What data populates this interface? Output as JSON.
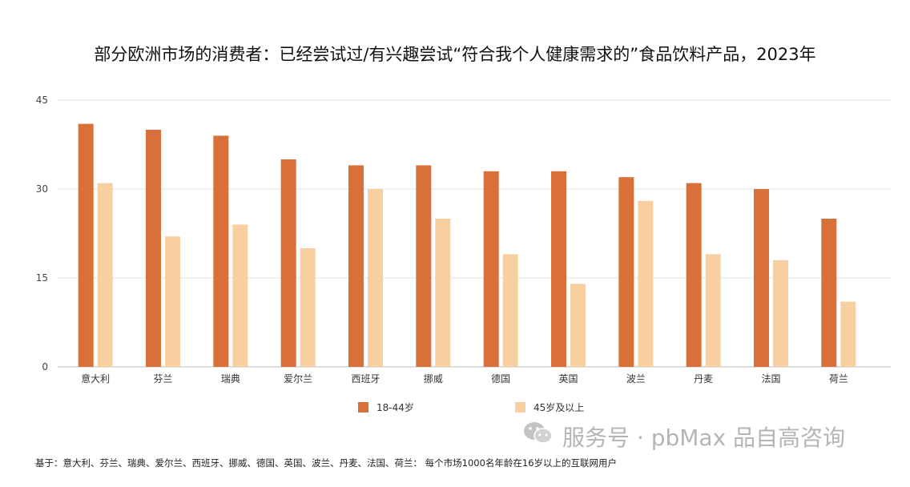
{
  "chart_data": {
    "type": "bar",
    "title": "部分欧洲市场的消费者：已经尝试过/有兴趣尝试“符合我个人健康需求的”食品饮料产品，2023年",
    "categories": [
      "意大利",
      "芬兰",
      "瑞典",
      "爱尔兰",
      "西班牙",
      "挪威",
      "德国",
      "英国",
      "波兰",
      "丹麦",
      "法国",
      "荷兰"
    ],
    "series": [
      {
        "name": "18-44岁",
        "color": "#d9703a",
        "values": [
          41,
          40,
          39,
          35,
          34,
          34,
          33,
          33,
          32,
          31,
          30,
          25
        ]
      },
      {
        "name": "45岁及以上",
        "color": "#f8cfa0",
        "values": [
          31,
          22,
          24,
          20,
          30,
          25,
          19,
          14,
          28,
          19,
          18,
          11
        ]
      }
    ],
    "ylim": [
      0,
      45
    ],
    "yticks": [
      0,
      15,
      30,
      45
    ],
    "grid": true,
    "legend_position": "bottom"
  },
  "watermark": {
    "icon": "wechat-icon",
    "text": "服务号 · pbMax 品自高咨询"
  },
  "footnote": "基于：意大利、芬兰、瑞典、爱尔兰、西班牙、挪威、德国、英国、波兰、丹麦、法国、荷兰：  每个市场1000名年龄在16岁以上的互联网用户"
}
